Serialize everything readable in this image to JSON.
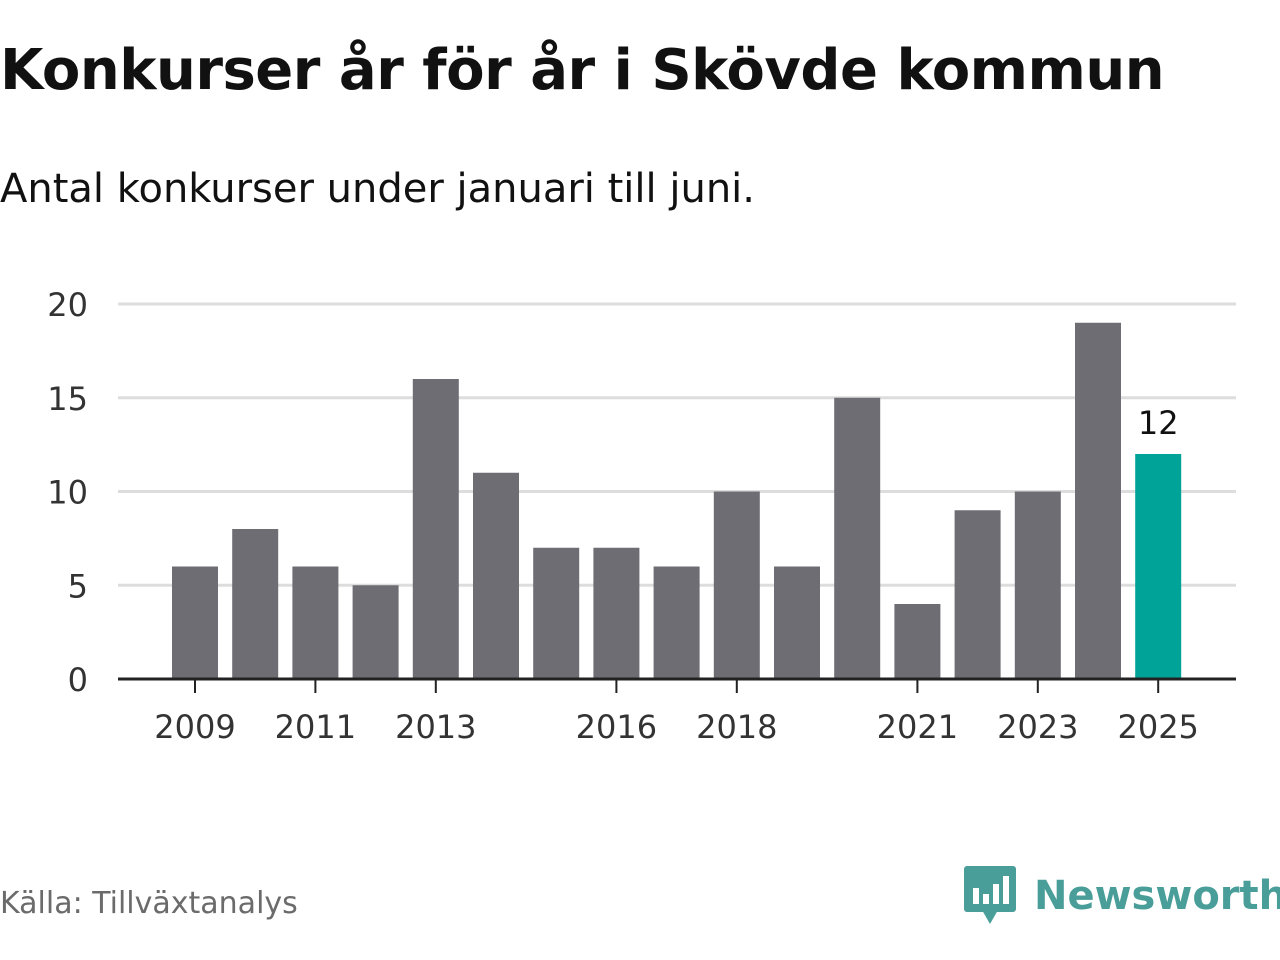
{
  "title": "Konkurser år för år i Skövde kommun",
  "subtitle": "Antal konkurser under januari till juni.",
  "source": "Källa: Tillväxtanalys",
  "brand": {
    "name": "Newsworthy",
    "icon": "newsworthy-logo-icon",
    "color": "#4a9e99"
  },
  "colors": {
    "bar": "#6e6d74",
    "highlight": "#00a398",
    "grid": "#dddddd",
    "axis": "#222222"
  },
  "chart_data": {
    "type": "bar",
    "title": "Konkurser år för år i Skövde kommun",
    "subtitle": "Antal konkurser under januari till juni.",
    "xlabel": "",
    "ylabel": "",
    "categories": [
      2009,
      2010,
      2011,
      2012,
      2013,
      2014,
      2015,
      2016,
      2017,
      2018,
      2019,
      2020,
      2021,
      2022,
      2023,
      2024,
      2025
    ],
    "values": [
      6,
      8,
      6,
      5,
      16,
      11,
      7,
      7,
      6,
      10,
      6,
      15,
      4,
      9,
      10,
      19,
      12
    ],
    "ylim": [
      0,
      20
    ],
    "yticks": [
      0,
      5,
      10,
      15,
      20
    ],
    "xtick_labels": [
      "2009",
      "2011",
      "2013",
      "2016",
      "2018",
      "2021",
      "2023",
      "2025"
    ],
    "highlight_category": 2025,
    "data_labels": [
      {
        "category": 2025,
        "label": "12"
      }
    ],
    "grid": true,
    "legend": "none"
  }
}
